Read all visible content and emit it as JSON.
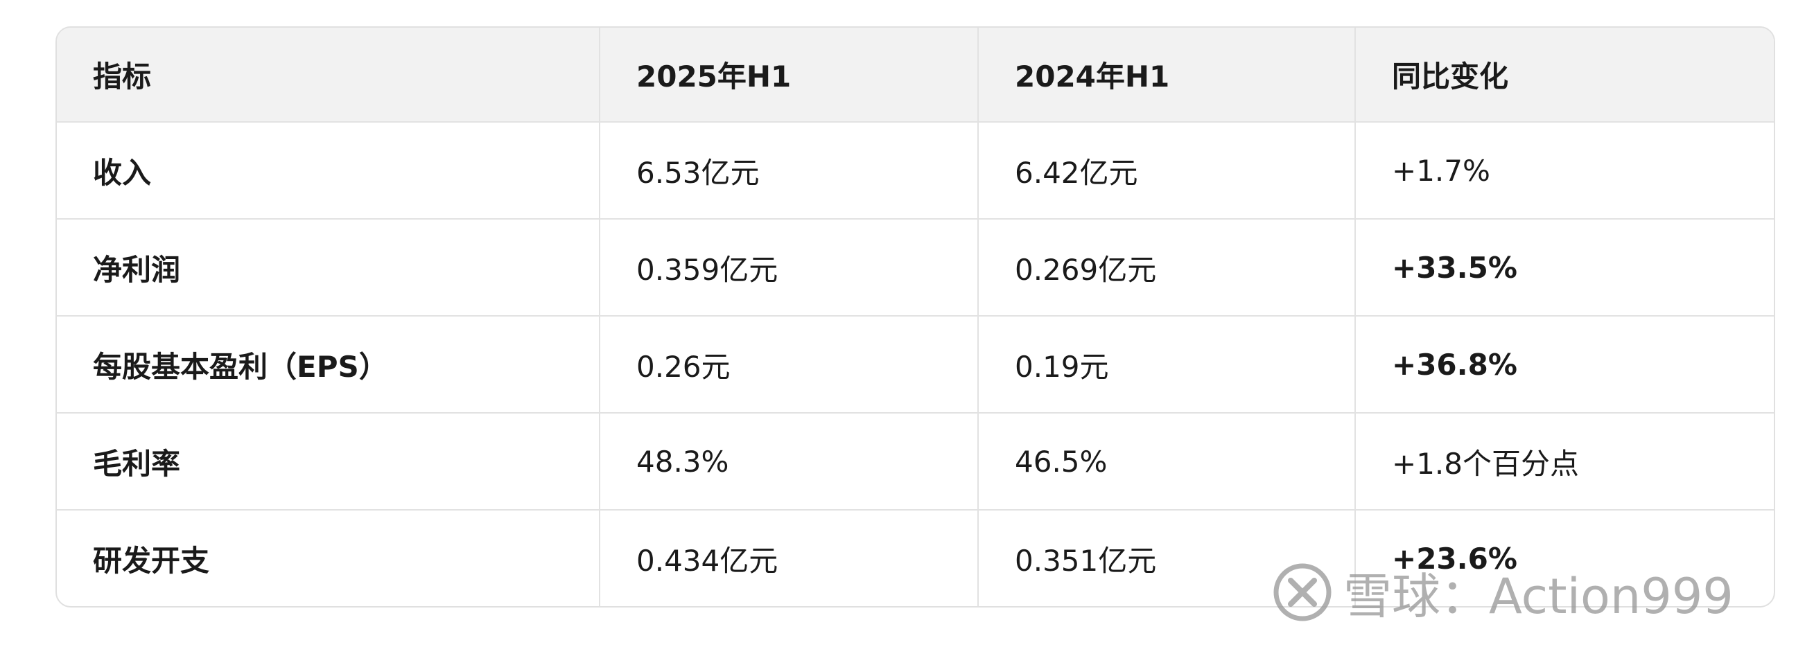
{
  "table": {
    "header": [
      "指标",
      "2025年H1",
      "2024年H1",
      "同比变化"
    ],
    "rows": [
      [
        "收入",
        "6.53亿元",
        "6.42亿元",
        "+1.7%"
      ],
      [
        "净利润",
        "0.359亿元",
        "0.269亿元",
        "+33.5%"
      ],
      [
        "每股基本盈利（EPS）",
        "0.26元",
        "0.19元",
        "+36.8%"
      ],
      [
        "毛利率",
        "48.3%",
        "46.5%",
        "+1.8个百分点"
      ],
      [
        "研发开支",
        "0.434亿元",
        "0.351亿元",
        "+23.6%"
      ]
    ]
  },
  "watermark": {
    "text": "雪球：Action999"
  }
}
